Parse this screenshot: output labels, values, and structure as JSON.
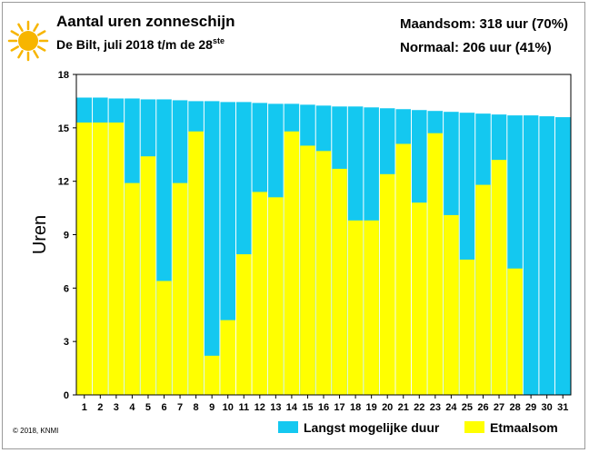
{
  "header": {
    "title": "Aantal uren zonneschijn",
    "subtitle_main": "De Bilt, juli 2018 t/m de 28",
    "subtitle_sup": "ste",
    "stat_month": "Maandsom: 318 uur (70%)",
    "stat_normal": "Normaal: 206 uur (41%)"
  },
  "copyright": "© 2018, KNMI",
  "legend": {
    "max_label": "Langst mogelijke duur",
    "actual_label": "Etmaalsom"
  },
  "colors": {
    "max": "#14c8f0",
    "actual": "#ffff00",
    "sun": "#f7b500"
  },
  "chart_data": {
    "type": "bar",
    "ylabel": "Uren",
    "ylim": [
      0,
      18
    ],
    "yticks": [
      0,
      3,
      6,
      9,
      12,
      15,
      18
    ],
    "categories": [
      "1",
      "2",
      "3",
      "4",
      "5",
      "6",
      "7",
      "8",
      "9",
      "10",
      "11",
      "12",
      "13",
      "14",
      "15",
      "16",
      "17",
      "18",
      "19",
      "20",
      "21",
      "22",
      "23",
      "24",
      "25",
      "26",
      "27",
      "28",
      "29",
      "30",
      "31"
    ],
    "series": [
      {
        "name": "Langst mogelijke duur",
        "values": [
          16.7,
          16.7,
          16.65,
          16.65,
          16.6,
          16.6,
          16.55,
          16.5,
          16.5,
          16.45,
          16.45,
          16.4,
          16.35,
          16.35,
          16.3,
          16.25,
          16.2,
          16.2,
          16.15,
          16.1,
          16.05,
          16.0,
          15.95,
          15.9,
          15.85,
          15.8,
          15.75,
          15.7,
          15.7,
          15.65,
          15.6
        ]
      },
      {
        "name": "Etmaalsom",
        "values": [
          15.3,
          15.3,
          15.3,
          11.9,
          13.4,
          6.4,
          11.9,
          14.8,
          2.2,
          4.2,
          7.9,
          11.4,
          11.1,
          14.8,
          14.0,
          13.7,
          12.7,
          9.8,
          9.8,
          12.4,
          14.1,
          10.8,
          14.7,
          10.1,
          7.6,
          11.8,
          13.2,
          7.1,
          null,
          null,
          null
        ]
      }
    ],
    "grid": false
  }
}
